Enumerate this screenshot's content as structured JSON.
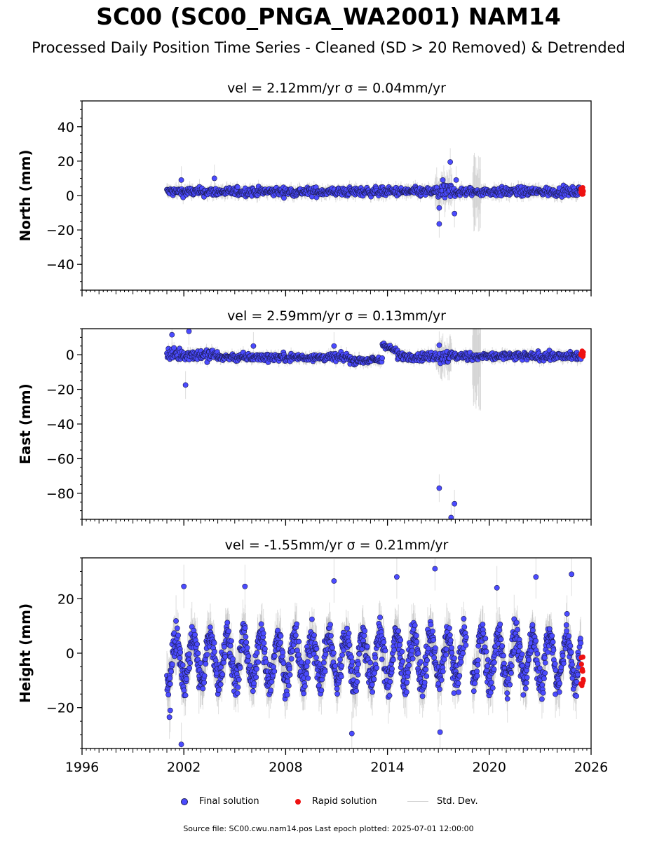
{
  "title": "SC00 (SC00_PNGA_WA2001) NAM14",
  "subtitle": "Processed Daily Position Time Series - Cleaned (SD > 20 Removed) & Detrended",
  "footer": "Source file: SC00.cwu.nam14.pos  Last epoch plotted: 2025-07-01 12:00:00",
  "legend": {
    "final": "Final solution",
    "rapid": "Rapid solution",
    "stddev": "Std. Dev."
  },
  "colors": {
    "final": "#4b4bff",
    "rapid": "#ee1111",
    "stddev": "#a0a0a0",
    "edge": "#1a1a50"
  },
  "chart_data": [
    {
      "type": "scatter",
      "panel": "north",
      "title": "vel = 2.12mm/yr   σ = 0.04mm/yr",
      "ylabel": "North (mm)",
      "xlabel": "",
      "xlim": [
        1996,
        2026
      ],
      "ylim": [
        -55,
        55
      ],
      "yticks": [
        -40,
        -20,
        0,
        20,
        40
      ],
      "xticks": [
        1996,
        2002,
        2008,
        2014,
        2020,
        2026
      ],
      "show_xtick_labels": false,
      "grid": false,
      "series": [
        {
          "name": "Final solution",
          "band": {
            "x": [
              2001.0,
              2025.4
            ],
            "center": 2.2,
            "spread": 2.5,
            "err": 3.5
          },
          "events": [
            {
              "x": [
                2016.8,
                2017.8
              ],
              "spread": 5,
              "err": 9
            },
            {
              "x": [
                2019.0,
                2019.5
              ],
              "spread": 2,
              "err": 18
            }
          ],
          "outliers": [
            {
              "x": 2017.7,
              "y": 19.5
            },
            {
              "x": 2017.05,
              "y": -16.5
            },
            {
              "x": 2017.05,
              "y": -7.2
            },
            {
              "x": 2017.95,
              "y": -10.5
            },
            {
              "x": 2003.8,
              "y": 10
            },
            {
              "x": 2018.05,
              "y": 9
            },
            {
              "x": 2001.85,
              "y": 9
            }
          ]
        },
        {
          "name": "Rapid solution",
          "band": {
            "x": [
              2025.4,
              2025.55
            ],
            "center": 3,
            "spread": 1.8
          }
        }
      ]
    },
    {
      "type": "scatter",
      "panel": "east",
      "title": "vel = 2.59mm/yr   σ = 0.13mm/yr",
      "ylabel": "East (mm)",
      "xlabel": "",
      "xlim": [
        1996,
        2026
      ],
      "ylim": [
        -95,
        15
      ],
      "yticks": [
        -80,
        -60,
        -40,
        -20,
        0
      ],
      "xticks": [
        1996,
        2002,
        2008,
        2014,
        2020,
        2026
      ],
      "show_xtick_labels": false,
      "grid": false,
      "series": [
        {
          "name": "Final solution",
          "band_segments": [
            {
              "x": [
                2001.0,
                2004.0
              ],
              "center": 0,
              "spread": 3.5
            },
            {
              "x": [
                2004.0,
                2011.8
              ],
              "center": -1.5,
              "spread": 2.2
            },
            {
              "x": [
                2011.8,
                2013.7
              ],
              "center": -3.2,
              "spread": 2
            },
            {
              "x": [
                2013.7,
                2014.6
              ],
              "center": 6,
              "spread": 1.5
            },
            {
              "x": [
                2014.6,
                2025.4
              ],
              "center": -1,
              "spread": 2.3
            }
          ],
          "err": 3,
          "events": [
            {
              "x": [
                2016.8,
                2017.8
              ],
              "spread": 4,
              "err": 10
            },
            {
              "x": [
                2019.0,
                2019.5
              ],
              "spread": 2,
              "err": 25
            }
          ],
          "outliers": [
            {
              "x": 2001.3,
              "y": 11.5
            },
            {
              "x": 2002.3,
              "y": 13.5
            },
            {
              "x": 2002.1,
              "y": -17.5
            },
            {
              "x": 2017.05,
              "y": -77
            },
            {
              "x": 2017.95,
              "y": -86
            },
            {
              "x": 2017.75,
              "y": -94
            },
            {
              "x": 2017.05,
              "y": 5.5
            },
            {
              "x": 2010.85,
              "y": 5
            },
            {
              "x": 2006.1,
              "y": 5
            }
          ]
        },
        {
          "name": "Rapid solution",
          "band": {
            "x": [
              2025.4,
              2025.55
            ],
            "center": 0,
            "spread": 1.5
          }
        }
      ]
    },
    {
      "type": "scatter",
      "panel": "up",
      "title": "vel = -1.55mm/yr   σ = 0.21mm/yr",
      "ylabel": "Height (mm)",
      "xlabel": "",
      "xlim": [
        1996,
        2026
      ],
      "ylim": [
        -35,
        35
      ],
      "yticks": [
        -20,
        0,
        20
      ],
      "xticks": [
        1996,
        2002,
        2008,
        2014,
        2020,
        2026
      ],
      "show_xtick_labels": true,
      "grid": false,
      "series": [
        {
          "name": "Final solution",
          "segments": [
            [
              2001.0,
              2018.65
            ],
            [
              2019.0,
              2025.4
            ]
          ],
          "seasonal_amplitude": 8.5,
          "spread": 6,
          "err": 7,
          "outliers": [
            {
              "x": 2016.8,
              "y": 31
            },
            {
              "x": 2014.55,
              "y": 28
            },
            {
              "x": 2010.85,
              "y": 26.5
            },
            {
              "x": 2024.85,
              "y": 29
            },
            {
              "x": 2022.75,
              "y": 28
            },
            {
              "x": 2011.9,
              "y": -29.5
            },
            {
              "x": 2001.85,
              "y": -33.5
            },
            {
              "x": 2017.1,
              "y": -29
            },
            {
              "x": 2001.15,
              "y": -23.5
            },
            {
              "x": 2001.2,
              "y": -21
            },
            {
              "x": 2002.0,
              "y": 24.5
            },
            {
              "x": 2005.6,
              "y": 24.5
            },
            {
              "x": 2020.45,
              "y": 24
            }
          ]
        },
        {
          "name": "Rapid solution",
          "band": {
            "x": [
              2025.4,
              2025.55
            ],
            "y": [
              -13,
              0
            ]
          }
        }
      ]
    }
  ]
}
